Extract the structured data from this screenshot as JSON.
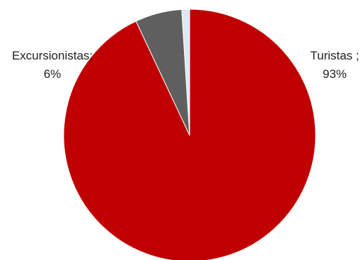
{
  "chart_data": {
    "type": "pie",
    "title": "",
    "start_angle_deg": 0,
    "direction": "clockwise",
    "slices": [
      {
        "name": "Turistas",
        "value": 93,
        "color": "#c00000",
        "label_name": "Turistas ;",
        "label_value": "93%"
      },
      {
        "name": "Excursionistas",
        "value": 6,
        "color": "#5f5f5f",
        "label_name": "Excursionistas;",
        "label_value": "6%"
      },
      {
        "name": "",
        "value": 1,
        "color": "#dfe7f2",
        "label_name": "",
        "label_value": ""
      }
    ],
    "legend": "none"
  }
}
